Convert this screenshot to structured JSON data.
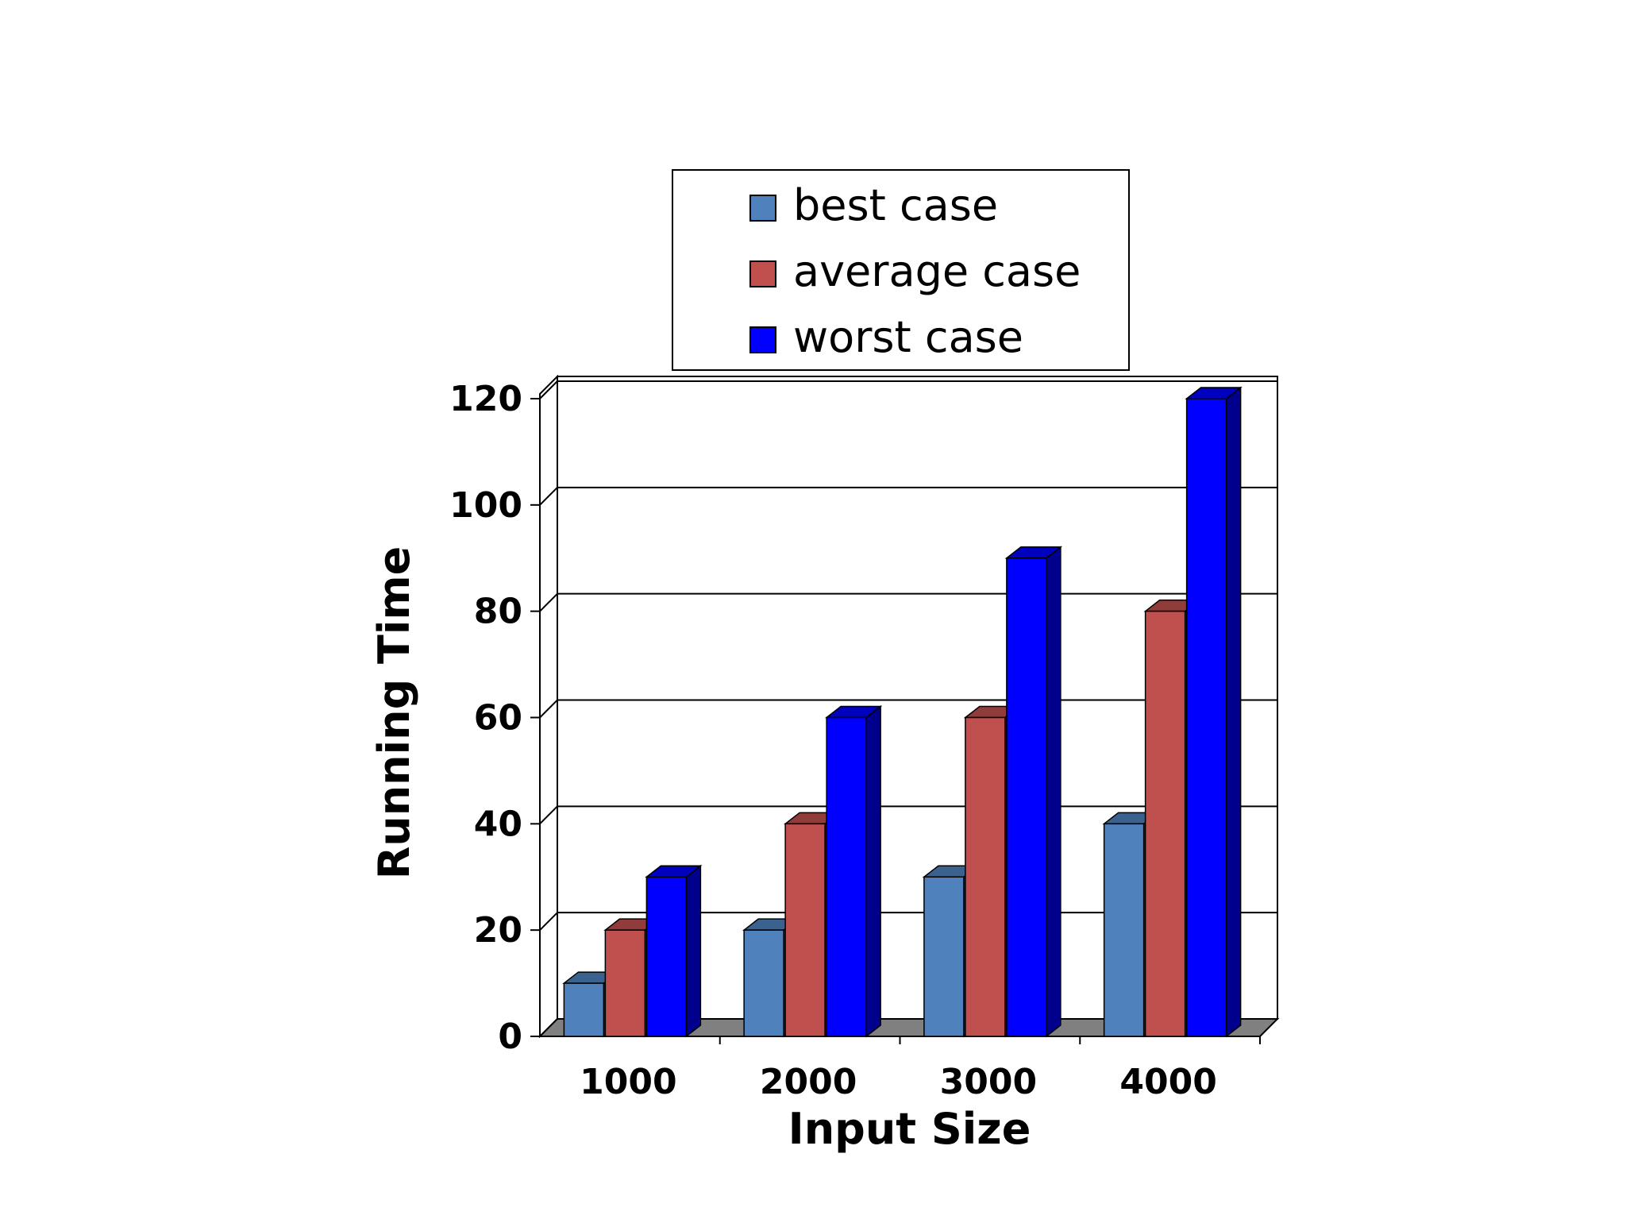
{
  "chart_data": {
    "type": "bar",
    "categories": [
      "1000",
      "2000",
      "3000",
      "4000"
    ],
    "series": [
      {
        "name": "best case",
        "values": [
          10,
          20,
          30,
          40
        ],
        "color": "#4f81bd"
      },
      {
        "name": "average case",
        "values": [
          20,
          40,
          60,
          80
        ],
        "color": "#c0504d"
      },
      {
        "name": "worst case",
        "values": [
          30,
          60,
          90,
          120
        ],
        "color": "#0000ff"
      }
    ],
    "xlabel": "Input Size",
    "ylabel": "Running Time",
    "ylim": [
      0,
      120
    ],
    "yticks": [
      0,
      20,
      40,
      60,
      80,
      100,
      120
    ],
    "grid": true,
    "legend_position": "top",
    "style": "3d-column"
  }
}
